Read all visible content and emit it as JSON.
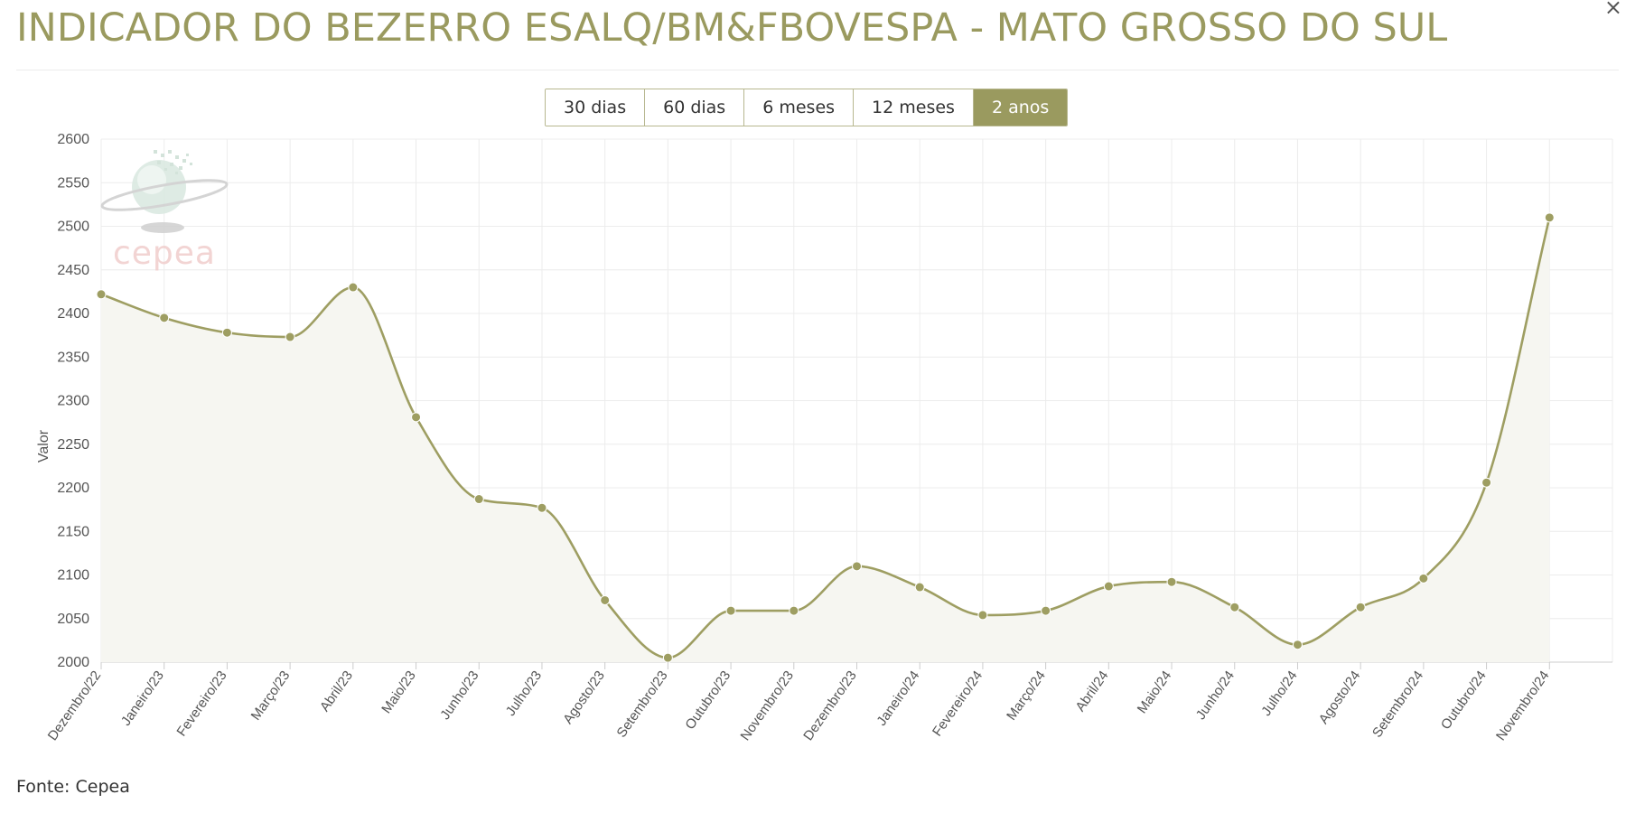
{
  "page": {
    "title": "INDICADOR DO BEZERRO ESALQ/BM&FBOVESPA - MATO GROSSO DO SUL",
    "close_symbol": "×",
    "source": "Fonte: Cepea"
  },
  "range_buttons": [
    {
      "label": "30 dias",
      "active": false
    },
    {
      "label": "60 dias",
      "active": false
    },
    {
      "label": "6 meses",
      "active": false
    },
    {
      "label": "12 meses",
      "active": false
    },
    {
      "label": "2 anos",
      "active": true
    }
  ],
  "watermark": {
    "text": "cepea",
    "icon": "globe-logo-icon"
  },
  "colors": {
    "accent": "#9a9a5f",
    "line": "#9e9e62",
    "area_fill": "#f6f6f1",
    "grid": "#ececec",
    "watermark_text": "#f1d0cf"
  },
  "chart_data": {
    "type": "area",
    "title": "INDICADOR DO BEZERRO ESALQ/BM&FBOVESPA - MATO GROSSO DO SUL",
    "xlabel": "",
    "ylabel": "Valor",
    "ylim": [
      2000,
      2600
    ],
    "yticks": [
      2000,
      2050,
      2100,
      2150,
      2200,
      2250,
      2300,
      2350,
      2400,
      2450,
      2500,
      2550,
      2600
    ],
    "grid": true,
    "legend": "none",
    "categories": [
      "Dezembro/22",
      "Janeiro/23",
      "Fevereiro/23",
      "Março/23",
      "Abril/23",
      "Maio/23",
      "Junho/23",
      "Julho/23",
      "Agosto/23",
      "Setembro/23",
      "Outubro/23",
      "Novembro/23",
      "Dezembro/23",
      "Janeiro/24",
      "Fevereiro/24",
      "Março/24",
      "Abril/24",
      "Maio/24",
      "Junho/24",
      "Julho/24",
      "Agosto/24",
      "Setembro/24",
      "Outubro/24",
      "Novembro/24"
    ],
    "series": [
      {
        "values": [
          2422,
          2395,
          2378,
          2373,
          2430,
          2281,
          2187,
          2177,
          2071,
          2005,
          2059,
          2059,
          2110,
          2086,
          2054,
          2059,
          2087,
          2092,
          2063,
          2020,
          2063,
          2096,
          2206,
          2510
        ]
      }
    ]
  }
}
